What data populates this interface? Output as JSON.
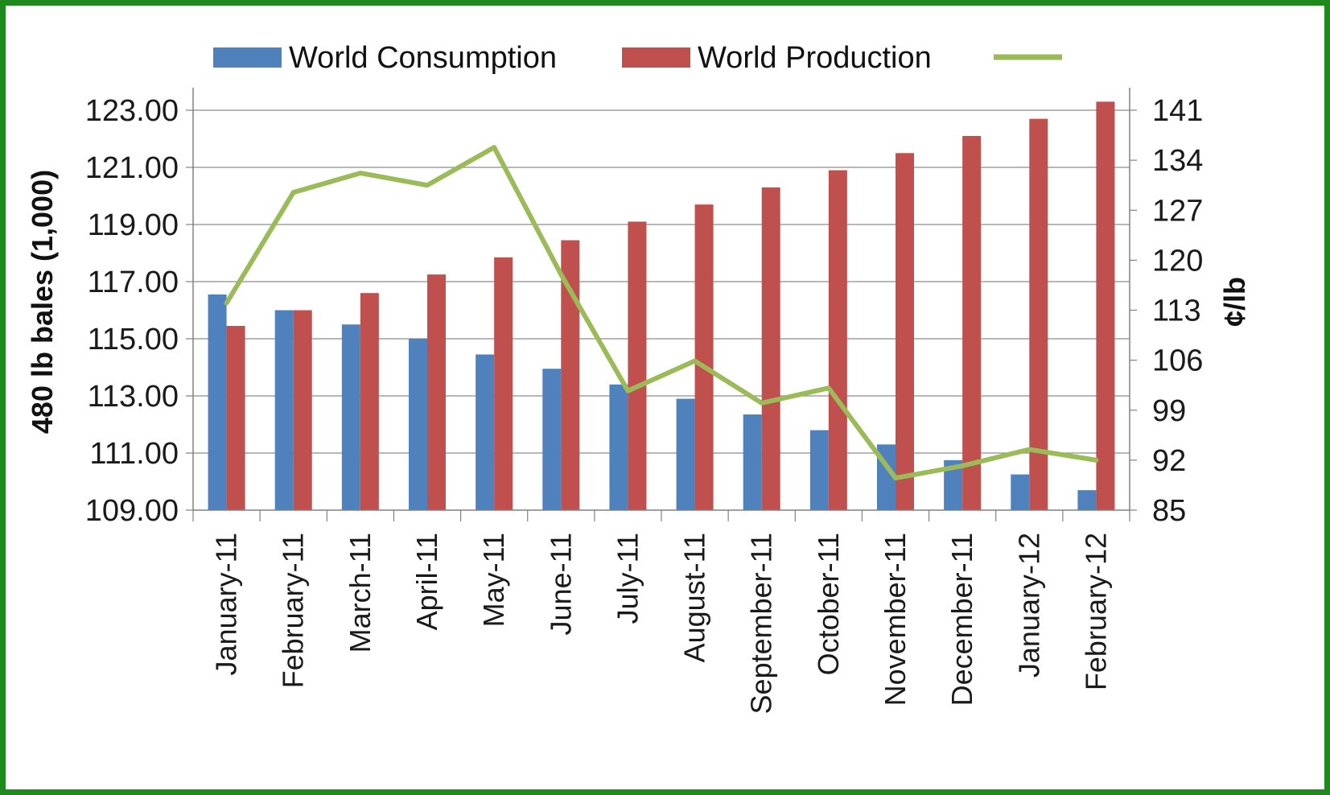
{
  "chart_data": {
    "type": "bar",
    "categories": [
      "January-11",
      "February-11",
      "March-11",
      "April-11",
      "May-11",
      "June-11",
      "July-11",
      "August-11",
      "September-11",
      "October-11",
      "November-11",
      "December-11",
      "January-12",
      "February-12"
    ],
    "series": [
      {
        "name": "World Consumption",
        "kind": "bar",
        "axis": "left",
        "color": "#4f81bd",
        "values": [
          116.55,
          116.0,
          115.5,
          115.0,
          114.45,
          113.95,
          113.4,
          112.9,
          112.35,
          111.8,
          111.3,
          110.75,
          110.25,
          109.7
        ]
      },
      {
        "name": "World Production",
        "kind": "bar",
        "axis": "left",
        "color": "#c0504d",
        "values": [
          115.45,
          116.0,
          116.6,
          117.25,
          117.85,
          118.45,
          119.1,
          119.7,
          120.3,
          120.9,
          121.5,
          122.1,
          122.7,
          123.3
        ]
      },
      {
        "name": "",
        "kind": "line",
        "axis": "right",
        "color": "#9bbb59",
        "values": [
          114,
          129.5,
          132.2,
          130.5,
          135.8,
          118,
          101.7,
          105.9,
          100,
          102.1,
          89.5,
          91.2,
          93.5,
          92
        ]
      }
    ],
    "ylabel": "480 lb bales (1,000)",
    "y2label": "¢/lb",
    "ylim": [
      109,
      123
    ],
    "y2lim": [
      85,
      141
    ],
    "yticks": [
      "109.00",
      "111.00",
      "113.00",
      "115.00",
      "117.00",
      "119.00",
      "121.00",
      "123.00"
    ],
    "y2ticks": [
      "85",
      "92",
      "99",
      "106",
      "113",
      "120",
      "127",
      "134",
      "141"
    ],
    "grid": true,
    "legend_position": "top"
  }
}
